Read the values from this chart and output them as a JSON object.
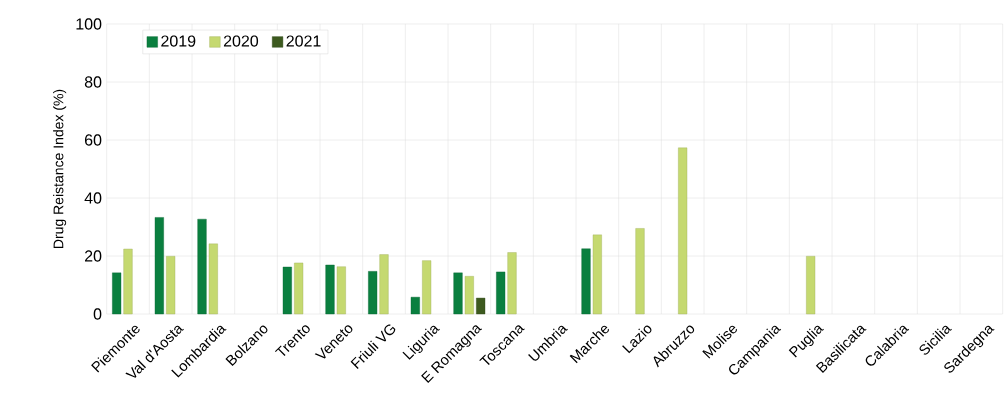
{
  "chart_data": {
    "type": "bar",
    "ylabel": "Drug Reistance Index (%)",
    "categories": [
      "Piemonte",
      "Val d'Aosta",
      "Lombardia",
      "Bolzano",
      "Trento",
      "Veneto",
      "Friuli VG",
      "Liguria",
      "E Romagna",
      "Toscana",
      "Umbria",
      "Marche",
      "Lazio",
      "Abruzzo",
      "Molise",
      "Campania",
      "Puglia",
      "Basilicata",
      "Calabria",
      "Sicilia",
      "Sardegna"
    ],
    "series": [
      {
        "name": "2019",
        "color": "#0a7f3f",
        "values": [
          14.2,
          33.3,
          32.7,
          null,
          16.2,
          16.9,
          14.7,
          5.8,
          14.2,
          14.5,
          null,
          22.5,
          null,
          null,
          null,
          null,
          null,
          null,
          null,
          null,
          null
        ]
      },
      {
        "name": "2020",
        "color": "#c5d970",
        "values": [
          22.4,
          19.9,
          24.2,
          null,
          17.6,
          16.3,
          20.5,
          18.4,
          13.0,
          21.2,
          null,
          27.3,
          29.5,
          57.3,
          null,
          null,
          19.9,
          null,
          null,
          null,
          null
        ]
      },
      {
        "name": "2021",
        "color": "#3d5a1f",
        "values": [
          null,
          null,
          null,
          null,
          null,
          null,
          null,
          null,
          5.5,
          null,
          null,
          null,
          null,
          null,
          null,
          null,
          null,
          null,
          null,
          null,
          null
        ]
      }
    ],
    "ylim": [
      0,
      100
    ],
    "yticks": [
      0,
      20,
      40,
      60,
      80,
      100
    ],
    "grid": true,
    "legend": "top left"
  }
}
